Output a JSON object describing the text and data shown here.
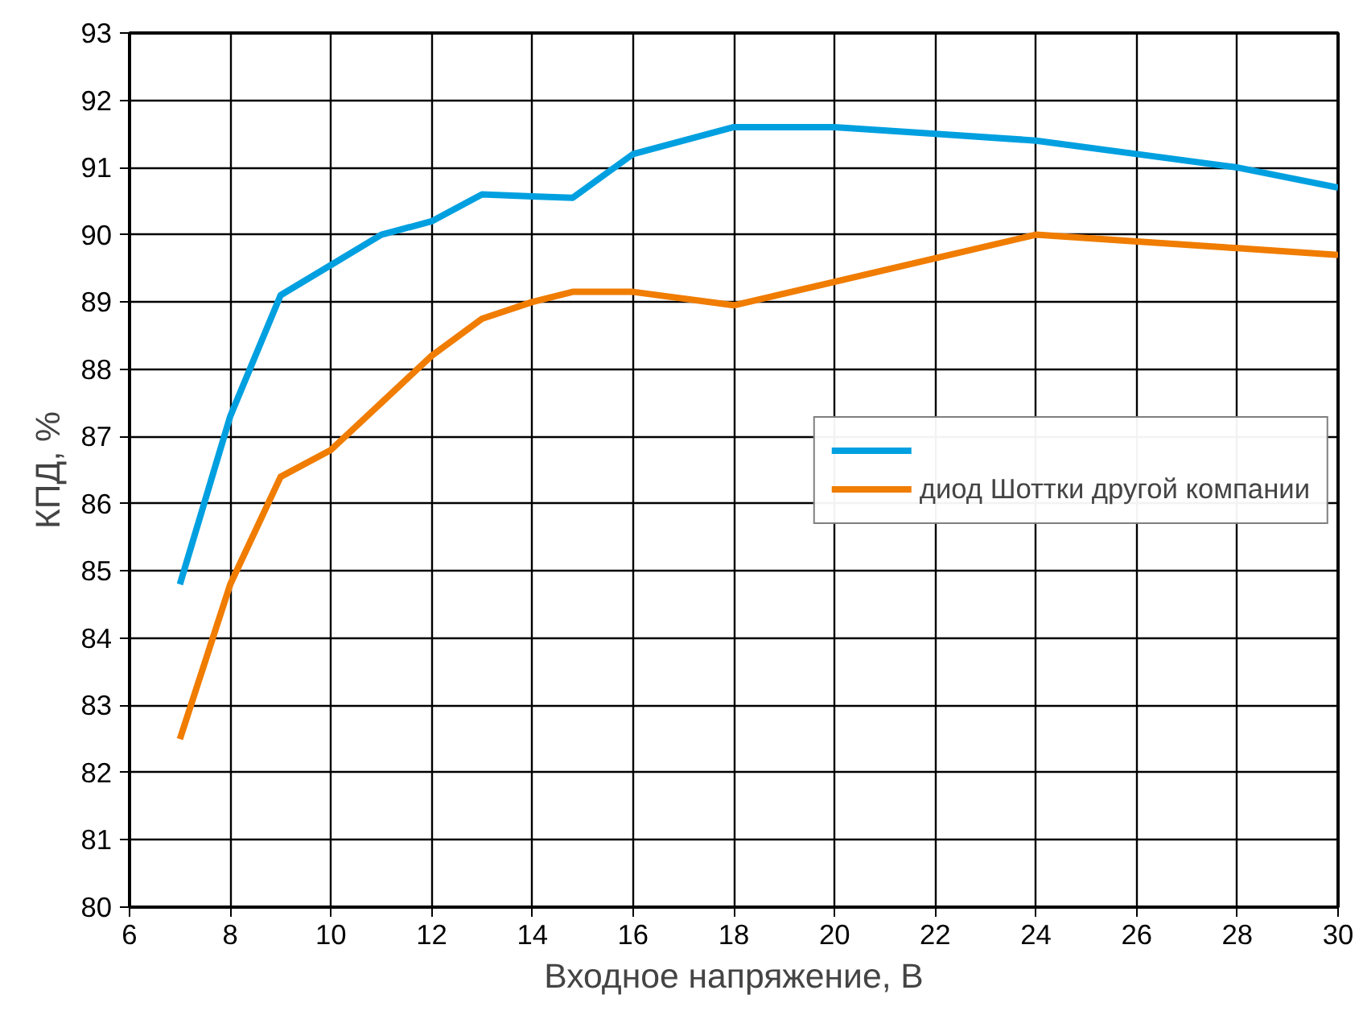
{
  "chart_data": {
    "type": "line",
    "xlabel": "Входное напряжение, В",
    "ylabel": "КПД, %",
    "xlim": [
      6,
      30
    ],
    "xticks": [
      6,
      8,
      10,
      12,
      14,
      16,
      18,
      20,
      22,
      24,
      26,
      28,
      30
    ],
    "ylim": [
      80,
      93
    ],
    "yticks": [
      80,
      81,
      82,
      83,
      84,
      85,
      86,
      87,
      88,
      89,
      90,
      91,
      92,
      93
    ],
    "grid": true,
    "legend": "right",
    "marker": "none",
    "line_style": "solid",
    "series": [
      {
        "color": "#00a0e0",
        "x": [
          7,
          8,
          9,
          10,
          11,
          12,
          13,
          14,
          14.8,
          16,
          18,
          20,
          22,
          24,
          26,
          28,
          30
        ],
        "values": [
          84.8,
          87.3,
          89.1,
          89.55,
          90.0,
          90.2,
          90.6,
          90.57,
          90.55,
          91.2,
          91.6,
          91.6,
          91.5,
          91.4,
          91.2,
          91.0,
          90.7
        ]
      },
      {
        "name": "диод Шоттки другой компании",
        "color": "#f07c00",
        "x": [
          7,
          8,
          9,
          10,
          11,
          12,
          13,
          14,
          14.8,
          16,
          18,
          20,
          22,
          24,
          26,
          28,
          30
        ],
        "values": [
          82.5,
          84.8,
          86.4,
          86.8,
          87.5,
          88.2,
          88.75,
          89.0,
          89.15,
          89.15,
          88.95,
          89.3,
          89.65,
          90.0,
          89.9,
          89.8,
          89.7
        ]
      }
    ]
  }
}
